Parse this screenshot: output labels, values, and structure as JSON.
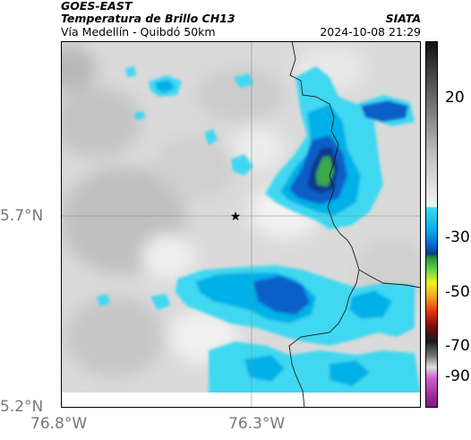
{
  "header": {
    "satellite": "GOES-EAST",
    "product": "Temperatura de Brillo CH13",
    "route": "Vía Medellín - Quibdó 50km",
    "institution": "SIATA",
    "timestamp": "2024-10-08 21:29"
  },
  "axes": {
    "x_ticks": [
      "76.8°W",
      "76.3°W"
    ],
    "y_ticks": [
      "5.7°N",
      "5.2°N"
    ]
  },
  "colorbar": {
    "labels": [
      "20",
      "-30",
      "-50",
      "-70",
      "-90"
    ]
  },
  "map": {
    "marker": "star-icon",
    "palette": {
      "cloud_light": "#40d8f0",
      "cloud_mid": "#00b0e8",
      "cloud_deep": "#0a5fc8",
      "cloud_core": "#0a3a8a",
      "convective": "#3aa84a",
      "background": "#d8d8d8"
    }
  }
}
